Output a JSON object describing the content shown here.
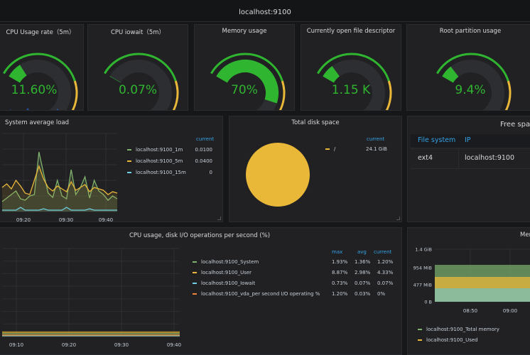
{
  "row_title": "localhost:9100",
  "gauges": [
    {
      "title": "CPU Usage rate（5m）",
      "value": "11.60%",
      "fill": 0.116
    },
    {
      "title": "CPU iowait（5m）",
      "value": "0.07%",
      "fill": 0.0007
    },
    {
      "title": "Memory usage",
      "value": "70%",
      "fill": 0.7
    },
    {
      "title": "Currently open file descriptor",
      "value": "1.15 K",
      "fill": 0.1
    },
    {
      "title": "Root partition usage",
      "value": "9.4%",
      "fill": 0.094
    }
  ],
  "load_panel": {
    "title": "System average load",
    "current_header": "current",
    "x_ticks": [
      "09:20",
      "09:30",
      "09:40"
    ],
    "legend": [
      {
        "name": "localhost:9100_1m",
        "value": "0.0100",
        "color": "#7eb26d"
      },
      {
        "name": "localhost:9100_5m",
        "value": "0.0400",
        "color": "#eab839"
      },
      {
        "name": "localhost:9100_15m",
        "value": "0",
        "color": "#6ed0e0"
      }
    ]
  },
  "disk_panel": {
    "title": "Total disk space",
    "current_header": "current",
    "legend": [
      {
        "name": "/",
        "value": "24.1 GiB",
        "color": "#eab839"
      }
    ]
  },
  "free_panel": {
    "title": "Free spac",
    "headers": [
      "File system",
      "IP"
    ],
    "row": [
      "ext4",
      "localhost:9100"
    ]
  },
  "cpu_panel": {
    "title": "CPU usage, disk I/O operations per second (%)",
    "headers": [
      "max",
      "avg",
      "current"
    ],
    "x_ticks": [
      "09:10",
      "09:20",
      "09:30",
      "09:40"
    ],
    "legend": [
      {
        "name": "localhost:9100_System",
        "max": "1.93%",
        "avg": "1.36%",
        "current": "1.20%",
        "color": "#7eb26d"
      },
      {
        "name": "localhost:9100_User",
        "max": "8.87%",
        "avg": "2.98%",
        "current": "4.33%",
        "color": "#eab839"
      },
      {
        "name": "localhost:9100_Iowait",
        "max": "0.73%",
        "avg": "0.07%",
        "current": "0.07%",
        "color": "#6ed0e0"
      },
      {
        "name": "localhost:9100_vda_per second I/O operating %",
        "max": "1.20%",
        "avg": "0.03%",
        "current": "0%",
        "color": "#ef843c"
      }
    ]
  },
  "mem_panel": {
    "title": "Mem",
    "y_ticks": [
      "1.4 GiB",
      "954 MiB",
      "477 MiB",
      "0 B"
    ],
    "x_ticks": [
      "08:50",
      "09:00"
    ],
    "legend": [
      {
        "name": "localhost:9100_Total memory",
        "color": "#7eb26d"
      },
      {
        "name": "localhost:9100_Used",
        "color": "#eab839"
      }
    ]
  },
  "colors": {
    "green": "#2fb52f",
    "yellow": "#eab839",
    "orange": "#ef843c",
    "red": "#d44a3a",
    "blue": "#33a2e5",
    "sparkline": "#1f60c4"
  }
}
